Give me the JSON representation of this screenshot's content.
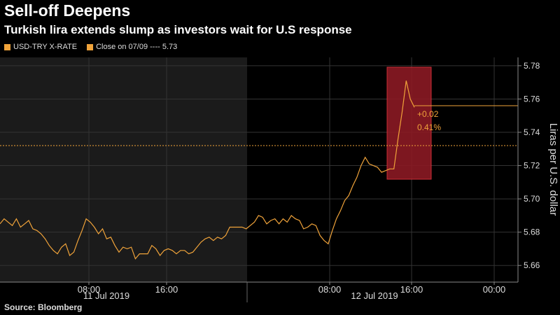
{
  "header": {
    "title": "Sell-off Deepens",
    "subtitle": "Turkish lira extends slump as investors wait for U.S response"
  },
  "legend": [
    {
      "label": "USD-TRY X-RATE",
      "color": "#f0a33a"
    },
    {
      "label": "Close on 07/09 ---- 5.73",
      "color": "#f0a33a"
    }
  ],
  "footer": {
    "source": "Source: Bloomberg"
  },
  "colors": {
    "line": "#f0a33a",
    "reference": "#f0a33a",
    "highlight": "#8b1a24",
    "shade": "#1b1b1b"
  },
  "chart_data": {
    "type": "line",
    "ylabel": "Liras per U.S. dollar",
    "ylim": [
      5.65,
      5.785
    ],
    "y_ticks": [
      "5.66",
      "5.68",
      "5.70",
      "5.72",
      "5.74",
      "5.76",
      "5.78"
    ],
    "x_ticks": [
      "08:00",
      "16:00",
      "08:00",
      "16:00",
      "00:00"
    ],
    "date_labels": [
      "11 Jul 2019",
      "12 Jul 2019"
    ],
    "reference_line": {
      "value": 5.732
    },
    "annotation": {
      "change": "+0.02",
      "percent": "0.41%"
    },
    "last_value": 5.756,
    "series": [
      {
        "name": "USD-TRY X-RATE",
        "values": [
          5.685,
          5.688,
          5.686,
          5.684,
          5.688,
          5.683,
          5.685,
          5.687,
          5.682,
          5.681,
          5.679,
          5.676,
          5.672,
          5.669,
          5.667,
          5.671,
          5.673,
          5.666,
          5.668,
          5.675,
          5.681,
          5.688,
          5.686,
          5.683,
          5.679,
          5.682,
          5.676,
          5.677,
          5.672,
          5.668,
          5.671,
          5.67,
          5.671,
          5.664,
          5.667,
          5.667,
          5.667,
          5.672,
          5.67,
          5.666,
          5.669,
          5.67,
          5.669,
          5.667,
          5.669,
          5.669,
          5.667,
          5.668,
          5.671,
          5.674,
          5.676,
          5.677,
          5.675,
          5.677,
          5.676,
          5.678,
          5.683,
          5.683,
          5.683,
          5.683,
          5.682,
          5.684,
          5.686,
          5.69,
          5.689,
          5.685,
          5.687,
          5.688,
          5.685,
          5.688,
          5.686,
          5.69,
          5.688,
          5.687,
          5.682,
          5.683,
          5.685,
          5.684,
          5.678,
          5.675,
          5.673,
          5.681,
          5.688,
          5.693,
          5.699,
          5.702,
          5.708,
          5.713,
          5.72,
          5.725,
          5.721,
          5.72,
          5.719,
          5.716,
          5.717,
          5.718,
          5.718,
          5.736,
          5.752,
          5.771,
          5.76,
          5.755
        ]
      }
    ]
  }
}
